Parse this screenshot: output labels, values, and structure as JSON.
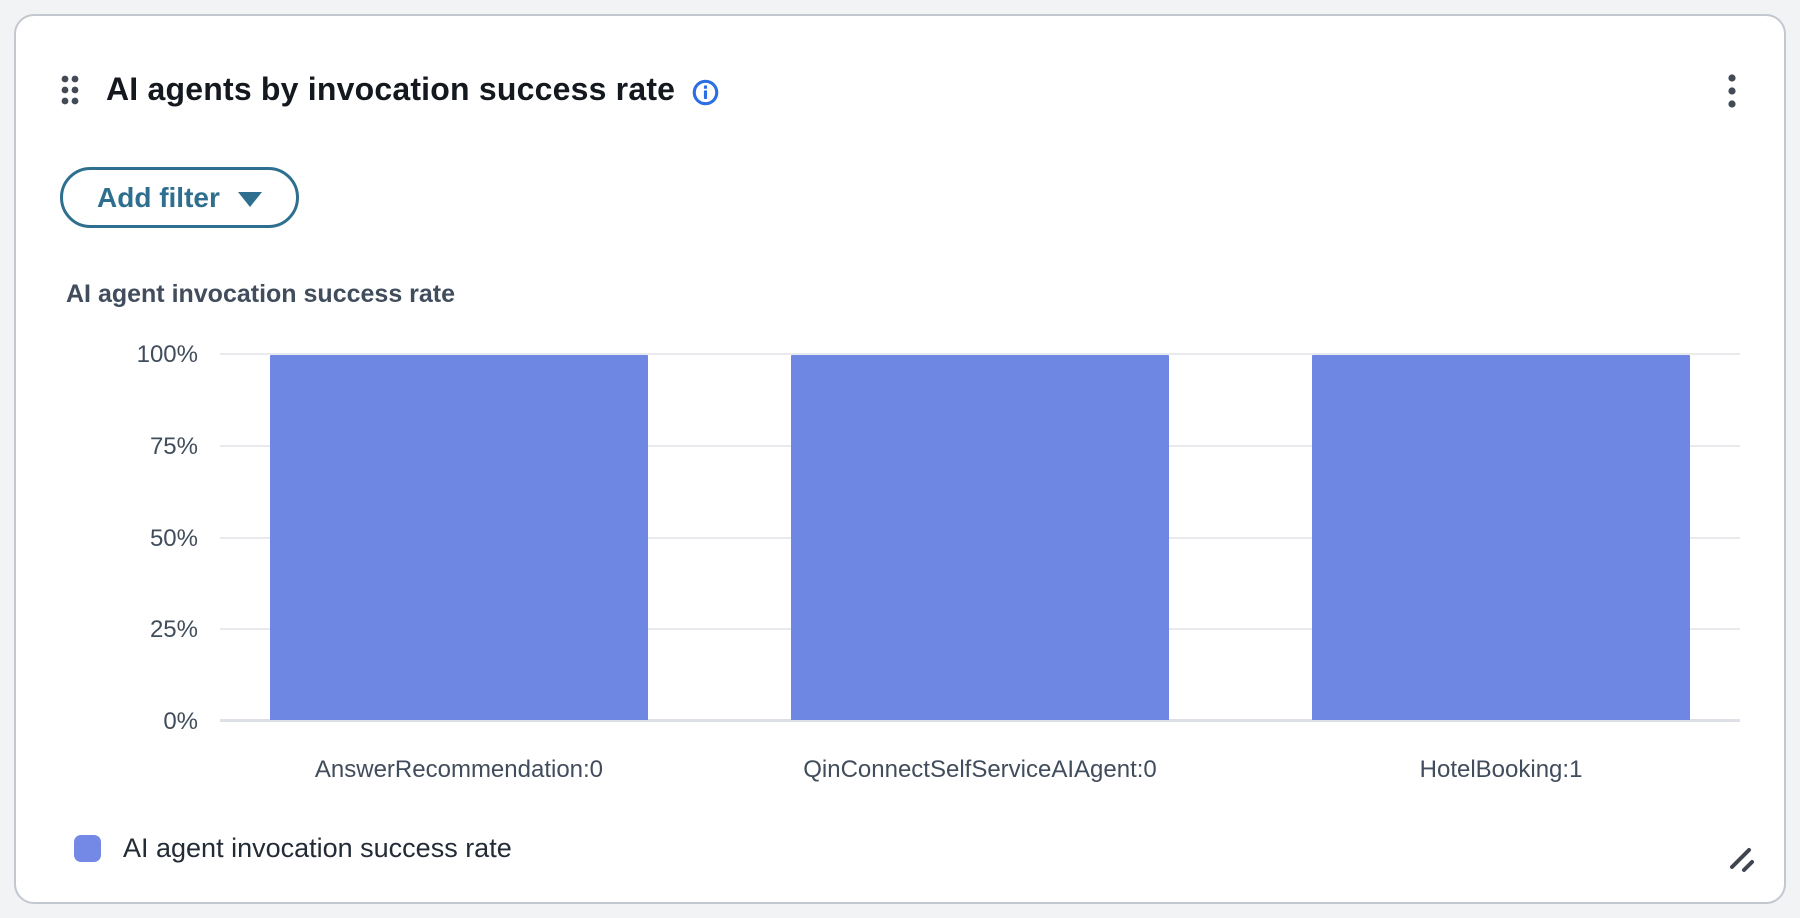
{
  "header": {
    "title": "AI agents by invocation success rate",
    "drag_handle_icon": "drag-dots",
    "info_icon": "info-circle",
    "menu_icon": "kebab-vertical"
  },
  "toolbar": {
    "add_filter_label": "Add filter",
    "caret_icon": "caret-down"
  },
  "chart_data": {
    "type": "bar",
    "title": "AI agent invocation success rate",
    "categories": [
      "AnswerRecommendation:0",
      "QinConnectSelfServiceAIAgent:0",
      "HotelBooking:1"
    ],
    "values": [
      100,
      100,
      100
    ],
    "unit": "%",
    "ylim": [
      0,
      100
    ],
    "yticks": [
      100,
      75,
      50,
      25,
      0
    ],
    "ytick_labels": [
      "100%",
      "75%",
      "50%",
      "25%",
      "0%"
    ],
    "grid": "horizontal",
    "bar_color": "#6e87e2",
    "legend_position": "bottom-left"
  },
  "legend": {
    "label": "AI agent invocation success rate",
    "swatch_color": "#7488e6"
  },
  "footer": {
    "resize_icon": "resize-handle"
  },
  "colors": {
    "accent_blue": "#2b6fe3",
    "button_teal": "#2e6f8f",
    "bar": "#6e87e2",
    "text_dark": "#14191f",
    "text_axis": "#414d5c"
  }
}
